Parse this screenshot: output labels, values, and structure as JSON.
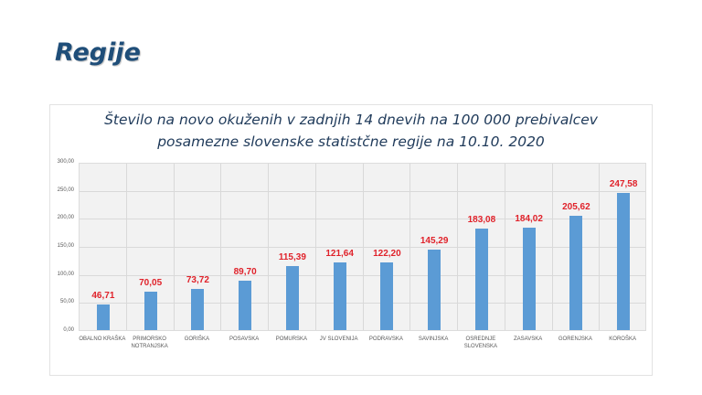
{
  "slide": {
    "title": "Regije"
  },
  "chart": {
    "title_line1": "Število na novo okuženih v zadnjih 14 dnevih na 100 000 prebivalcev",
    "title_line2": "posamezne slovenske statistčne regije na 10.10. 2020",
    "bar_color": "#5b9bd5",
    "label_color": "#e0222a",
    "y_ticks": [
      "0,00",
      "50,00",
      "100,00",
      "150,00",
      "200,00",
      "250,00",
      "300,00"
    ],
    "bars": [
      {
        "label": "OBALNO KRAŠKA",
        "value": 46.71,
        "value_label": "46,71"
      },
      {
        "label": "PRIMORSKO NOTRANJSKA",
        "value": 70.05,
        "value_label": "70,05"
      },
      {
        "label": "GORIŠKA",
        "value": 73.72,
        "value_label": "73,72"
      },
      {
        "label": "POSAVSKA",
        "value": 89.7,
        "value_label": "89,70"
      },
      {
        "label": "POMURSKA",
        "value": 115.39,
        "value_label": "115,39"
      },
      {
        "label": "JV SLOVENIJA",
        "value": 121.64,
        "value_label": "121,64"
      },
      {
        "label": "PODRAVSKA",
        "value": 122.2,
        "value_label": "122,20"
      },
      {
        "label": "SAVINJSKA",
        "value": 145.29,
        "value_label": "145,29"
      },
      {
        "label": "OSREDNJE SLOVENSKA",
        "value": 183.08,
        "value_label": "183,08"
      },
      {
        "label": "ZASAVSKA",
        "value": 184.02,
        "value_label": "184,02"
      },
      {
        "label": "GORENJSKA",
        "value": 205.62,
        "value_label": "205,62"
      },
      {
        "label": "KOROŠKA",
        "value": 247.58,
        "value_label": "247,58"
      }
    ]
  },
  "chart_data": {
    "type": "bar",
    "title": "Število na novo okuženih v zadnjih 14 dnevih na 100 000 prebivalcev posamezne slovenske statistčne regije na 10.10. 2020",
    "categories": [
      "OBALNO KRAŠKA",
      "PRIMORSKO NOTRANJSKA",
      "GORIŠKA",
      "POSAVSKA",
      "POMURSKA",
      "JV SLOVENIJA",
      "PODRAVSKA",
      "SAVINJSKA",
      "OSREDNJE SLOVENSKA",
      "ZASAVSKA",
      "GORENJSKA",
      "KOROŠKA"
    ],
    "values": [
      46.71,
      70.05,
      73.72,
      89.7,
      115.39,
      121.64,
      122.2,
      145.29,
      183.08,
      184.02,
      205.62,
      247.58
    ],
    "xlabel": "",
    "ylabel": "",
    "ylim": [
      0,
      300
    ],
    "yticks": [
      0,
      50,
      100,
      150,
      200,
      250,
      300
    ],
    "grid": true,
    "data_labels": true,
    "legend": "none"
  }
}
